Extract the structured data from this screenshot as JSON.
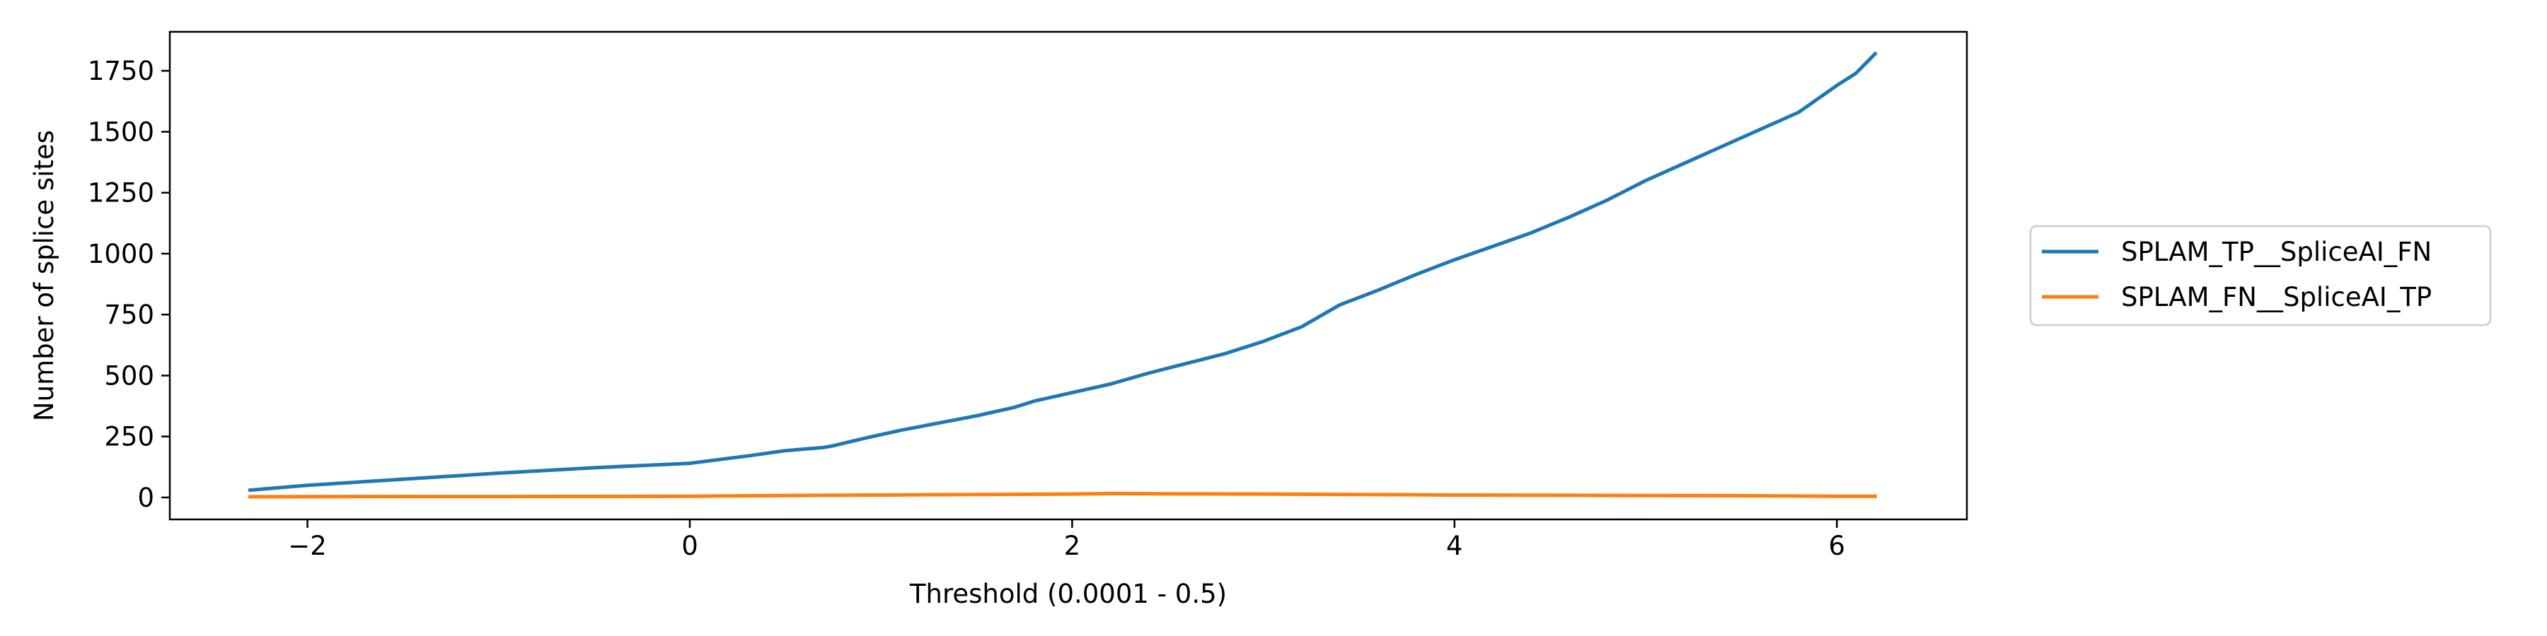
{
  "chart_data": {
    "type": "line",
    "title": "",
    "xlabel": "Threshold (0.0001 - 0.5)",
    "ylabel": "Number of splice sites",
    "xlim": [
      -2.72,
      6.68
    ],
    "ylim": [
      -90,
      1910
    ],
    "xticks": [
      -2,
      0,
      2,
      4,
      6
    ],
    "xtick_labels": [
      "−2",
      "0",
      "2",
      "4",
      "6"
    ],
    "yticks": [
      0,
      250,
      500,
      750,
      1000,
      1250,
      1500,
      1750
    ],
    "ytick_labels": [
      "0",
      "250",
      "500",
      "750",
      "1000",
      "1250",
      "1500",
      "1750"
    ],
    "grid": false,
    "legend_position": "outside-right",
    "series": [
      {
        "name": "SPLAM_TP__SpliceAI_FN",
        "color": "#1f77b4",
        "x": [
          -2.3,
          -2.0,
          -1.5,
          -1.0,
          -0.5,
          0.0,
          0.1,
          0.3,
          0.5,
          0.7,
          0.75,
          0.9,
          1.1,
          1.3,
          1.5,
          1.7,
          1.8,
          2.0,
          2.2,
          2.4,
          2.5,
          2.6,
          2.8,
          3.0,
          3.2,
          3.4,
          3.5,
          3.6,
          3.8,
          4.0,
          4.2,
          4.4,
          4.6,
          4.8,
          5.0,
          5.2,
          5.4,
          5.6,
          5.8,
          6.0,
          6.1,
          6.2
        ],
        "y": [
          30,
          50,
          75,
          100,
          122,
          140,
          150,
          170,
          192,
          205,
          212,
          240,
          275,
          305,
          335,
          370,
          395,
          430,
          465,
          510,
          530,
          550,
          590,
          640,
          700,
          790,
          820,
          850,
          915,
          975,
          1030,
          1085,
          1150,
          1220,
          1300,
          1370,
          1440,
          1510,
          1580,
          1690,
          1740,
          1820
        ]
      },
      {
        "name": "SPLAM_FN__SpliceAI_TP",
        "color": "#ff7f0e",
        "x": [
          -2.3,
          -1.5,
          -1.0,
          0.0,
          0.5,
          1.0,
          1.5,
          2.0,
          2.2,
          2.5,
          3.0,
          3.5,
          4.0,
          4.5,
          5.0,
          5.5,
          6.0,
          6.2
        ],
        "y": [
          3,
          4,
          4,
          5,
          8,
          10,
          12,
          14,
          16,
          15,
          14,
          12,
          10,
          9,
          8,
          7,
          5,
          5
        ]
      }
    ]
  }
}
